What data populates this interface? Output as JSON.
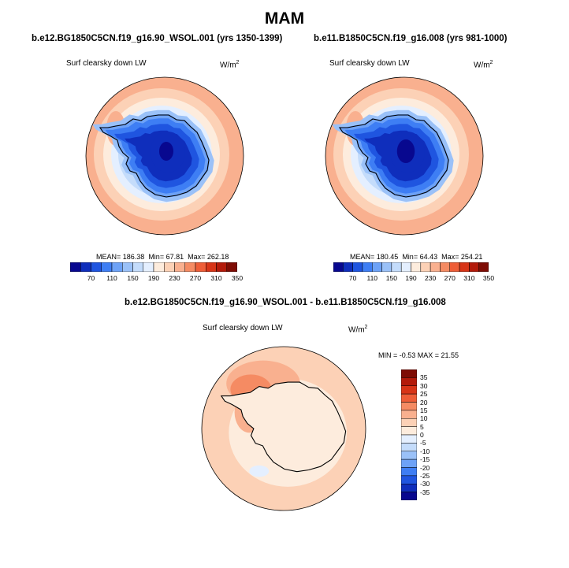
{
  "season": "MAM",
  "colors": {
    "abs_levels": [
      "#08088f",
      "#0f2ebc",
      "#1f55e0",
      "#3e7ef4",
      "#6da2f7",
      "#9ac1f8",
      "#c4dcfb",
      "#e4efff",
      "#fdecdd",
      "#fcd1b6",
      "#f9b08f",
      "#f58b63",
      "#ee5d37",
      "#d73417",
      "#b31a0a",
      "#7e0c04"
    ],
    "diff_levels": [
      "#08088f",
      "#0f2ebc",
      "#1f55e0",
      "#3e7ef4",
      "#6da2f7",
      "#9ac1f8",
      "#c4dcfb",
      "#e4efff",
      "#fdecdd",
      "#fcd1b6",
      "#f9b08f",
      "#f58b63",
      "#ee5d37",
      "#d73417",
      "#b31a0a",
      "#7e0c04"
    ],
    "coastline": "#000000"
  },
  "panels": [
    {
      "title": "b.e12.BG1850C5CN.f19_g16.90_WSOL.001 (yrs 1350-1399)",
      "variable": "Surf clearsky down LW",
      "units": "W/m",
      "units_exp": "2",
      "mean": "MEAN= 186.38",
      "min": "Min=  67.81",
      "max": "Max= 262.18",
      "colorbar_labels": [
        "70",
        "110",
        "150",
        "190",
        "230",
        "270",
        "310",
        "350"
      ]
    },
    {
      "title": "b.e11.B1850C5CN.f19_g16.008 (yrs 981-1000)",
      "variable": "Surf clearsky down LW",
      "units": "W/m",
      "units_exp": "2",
      "mean": "MEAN= 180.45",
      "min": "Min=  64.43",
      "max": "Max= 254.21",
      "colorbar_labels": [
        "70",
        "110",
        "150",
        "190",
        "230",
        "270",
        "310",
        "350"
      ]
    }
  ],
  "difference": {
    "title": "b.e12.BG1850C5CN.f19_g16.90_WSOL.001 - b.e11.B1850C5CN.f19_g16.008",
    "variable": "Surf clearsky down LW",
    "units": "W/m",
    "units_exp": "2",
    "stats": "MIN =  -0.53 MAX =  21.55",
    "colorbar_labels": [
      "35",
      "30",
      "25",
      "20",
      "15",
      "10",
      "5",
      "0",
      "-5",
      "-10",
      "-15",
      "-20",
      "-25",
      "-30",
      "-35"
    ]
  }
}
